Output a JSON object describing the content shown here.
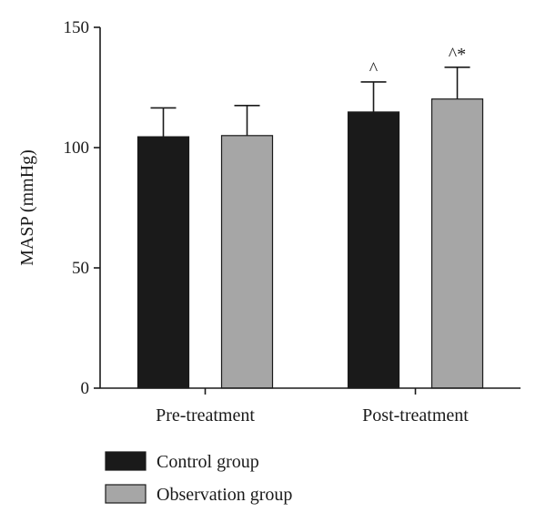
{
  "chart_data": {
    "type": "bar",
    "title": "",
    "xlabel": "",
    "ylabel": "MASP (mmHg)",
    "ylim": [
      0,
      150
    ],
    "yticks": [
      0,
      50,
      100,
      150
    ],
    "grid": false,
    "legend_position": "bottom-left",
    "categories": [
      "Pre-treatment",
      "Post-treatment"
    ],
    "series": [
      {
        "name": "Control group",
        "color": "#1a1a1a",
        "values": [
          104.5,
          114.8
        ],
        "errors": [
          12.0,
          12.5
        ],
        "annotations": [
          "",
          "^"
        ]
      },
      {
        "name": "Observation group",
        "color": "#a6a6a6",
        "values": [
          105.0,
          120.2
        ],
        "errors": [
          12.5,
          13.2
        ],
        "annotations": [
          "",
          "^*"
        ]
      }
    ]
  }
}
